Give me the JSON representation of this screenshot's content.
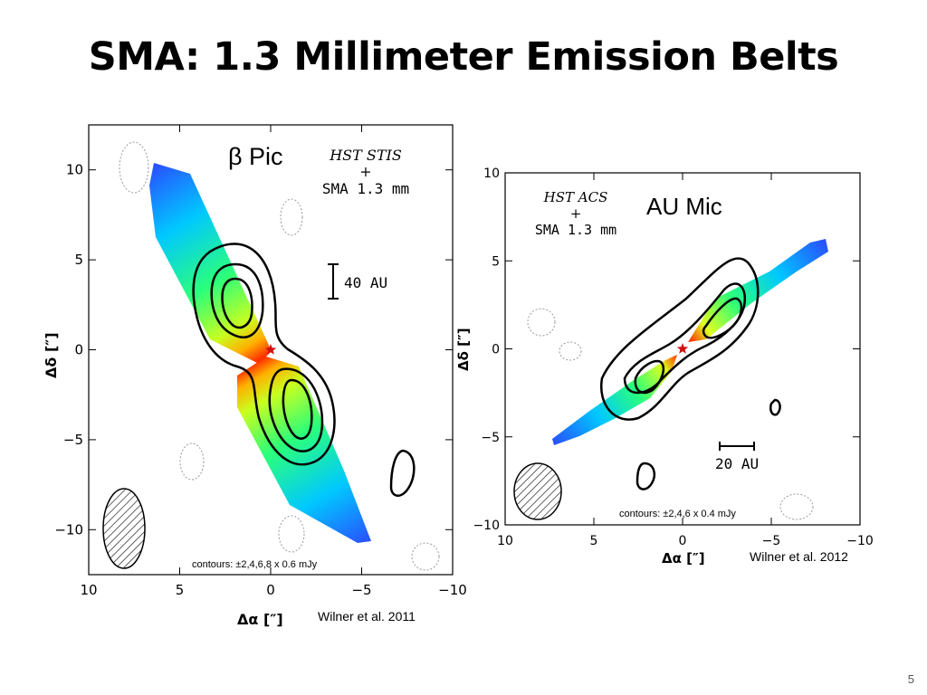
{
  "slide": {
    "title": "SMA: 1.3 Millimeter Emission Belts",
    "page_number": "5"
  },
  "chart_data": [
    {
      "type": "contour",
      "name": "β Pic",
      "overlay_label": [
        "HST STIS",
        "+",
        "SMA 1.3 mm"
      ],
      "xlabel": "Δα [″]",
      "ylabel": "Δδ [″]",
      "xlim": [
        10,
        -10
      ],
      "ylim": [
        -12.5,
        12.5
      ],
      "x_ticks": [
        10,
        5,
        0,
        -5,
        -10
      ],
      "x_tick_labels": [
        "10",
        "5",
        "0",
        "−5",
        "−10"
      ],
      "y_ticks": [
        10,
        5,
        0,
        -5,
        -10
      ],
      "y_tick_labels": [
        "10",
        "5",
        "0",
        "−5",
        "−10"
      ],
      "scale_bar": "40 AU",
      "contour_note": "contours: ±2,4,6,8 x 0.6 mJy",
      "citation": "Wilner et al. 2011",
      "star": [
        0,
        0
      ]
    },
    {
      "type": "contour",
      "name": "AU Mic",
      "overlay_label": [
        "HST ACS",
        "+",
        "SMA 1.3 mm"
      ],
      "xlabel": "Δα [″]",
      "ylabel": "Δδ [″]",
      "xlim": [
        10,
        -10
      ],
      "ylim": [
        -10,
        10
      ],
      "x_ticks": [
        10,
        5,
        0,
        -5,
        -10
      ],
      "x_tick_labels": [
        "10",
        "5",
        "0",
        "−5",
        "−10"
      ],
      "y_ticks": [
        10,
        5,
        0,
        -5,
        -10
      ],
      "y_tick_labels": [
        "10",
        "5",
        "0",
        "−5",
        "−10"
      ],
      "scale_bar": "20 AU",
      "contour_note": "contours: ±2,4,6 x 0.4 mJy",
      "citation": "Wilner et al. 2012",
      "star": [
        0,
        0
      ]
    }
  ]
}
